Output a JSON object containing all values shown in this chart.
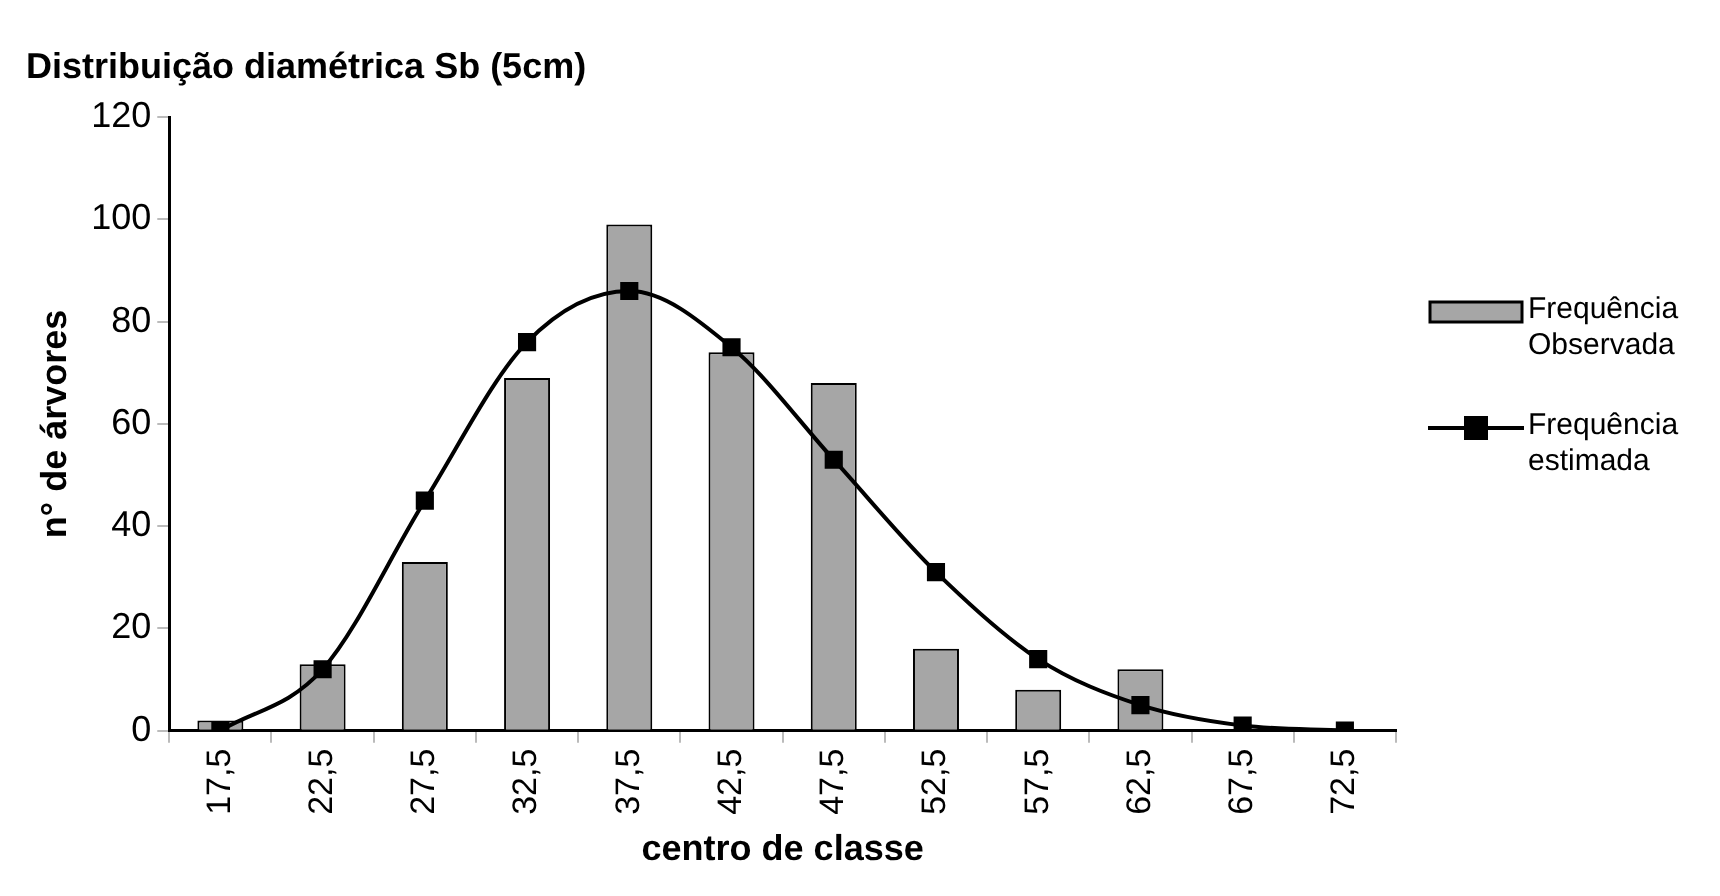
{
  "chart_data": {
    "type": "bar",
    "title": "Distribuição diamétrica Sb (5cm)",
    "xlabel": "centro de classe",
    "ylabel": "n° de árvores",
    "categories": [
      "17,5",
      "22,5",
      "27,5",
      "32,5",
      "37,5",
      "42,5",
      "47,5",
      "52,5",
      "57,5",
      "62,5",
      "67,5",
      "72,5"
    ],
    "series": [
      {
        "name": "Frequência Observada",
        "color": "#a6a6a6",
        "values": [
          2,
          13,
          33,
          69,
          99,
          74,
          68,
          16,
          8,
          12,
          0,
          0
        ]
      },
      {
        "name": "Frequência estimada",
        "type": "line",
        "color": "#000000",
        "marker": "square",
        "values": [
          0,
          12,
          45,
          76,
          86,
          75,
          53,
          31,
          14,
          5,
          1,
          0
        ]
      }
    ],
    "ylim": [
      0,
      120
    ],
    "yticks": [
      0,
      20,
      40,
      60,
      80,
      100,
      120
    ],
    "grid": false,
    "legend": "right"
  }
}
